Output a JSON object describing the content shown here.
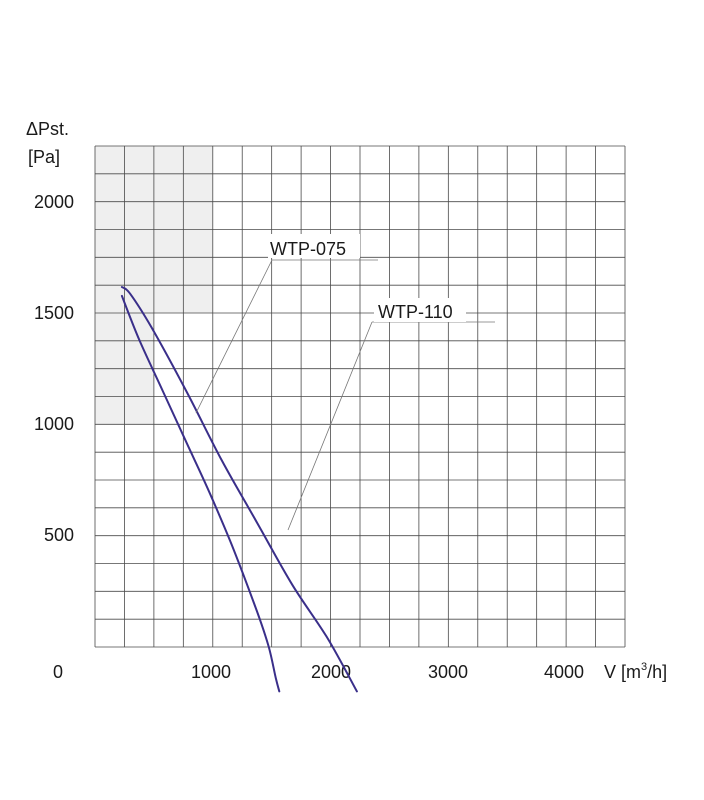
{
  "chart_data": {
    "type": "line",
    "ylabel_top": "ΔPst.",
    "ylabel_unit": "[Pa]",
    "xlabel_prefix": "V [m",
    "xlabel_sup": "3",
    "xlabel_suffix": "/h]",
    "origin_label": "0",
    "x_ticks": [
      "1000",
      "2000",
      "3000",
      "4000"
    ],
    "y_ticks": [
      "2000",
      "1500",
      "1000",
      "500"
    ],
    "xlim": [
      0,
      4600
    ],
    "ylim": [
      0,
      2250
    ],
    "grid": true,
    "series": [
      {
        "name": "WTP-075",
        "color": "#3a2f8a",
        "x": [
          250,
          400,
          600,
          800,
          1000,
          1200,
          1400,
          1500,
          1560,
          1590
        ],
        "y": [
          1580,
          1380,
          1150,
          920,
          690,
          440,
          160,
          0,
          -140,
          -200
        ]
      },
      {
        "name": "WTP-110",
        "color": "#3a2f8a",
        "x": [
          250,
          320,
          500,
          800,
          1100,
          1400,
          1700,
          2000,
          2250
        ],
        "y": [
          1620,
          1590,
          1440,
          1150,
          840,
          560,
          280,
          40,
          -200
        ]
      }
    ]
  }
}
